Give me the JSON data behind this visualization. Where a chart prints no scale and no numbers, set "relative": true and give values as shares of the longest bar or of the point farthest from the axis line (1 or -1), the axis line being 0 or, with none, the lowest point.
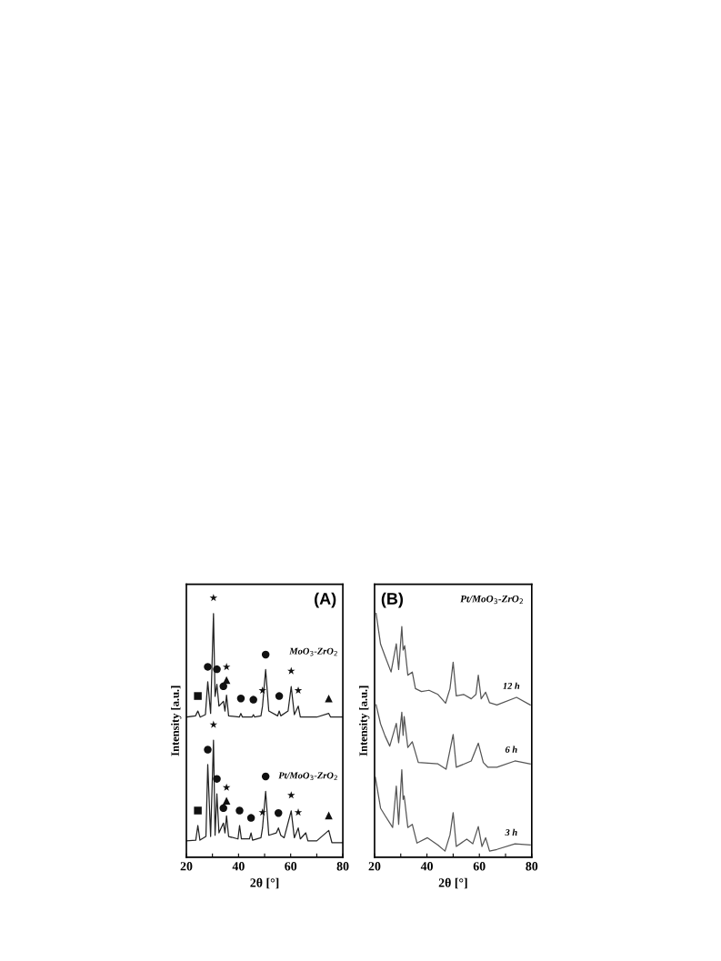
{
  "chart_data": [
    {
      "type": "line",
      "title": "(A)",
      "xlabel": "2θ [°]",
      "ylabel": "Intensity [a.u.]",
      "relative": true,
      "tick_labels": "x",
      "xlim": [
        20,
        80
      ],
      "xticks": [
        20,
        {
          "value": 30,
          "label": null
        },
        40,
        {
          "value": 50,
          "label": null
        },
        60,
        {
          "value": 70,
          "label": null
        },
        80
      ],
      "series": [
        {
          "name": "MoO$_{3}$-ZrO$_{2}$",
          "color": "#222222",
          "x": [
            20,
            23.5,
            24.4,
            25.3,
            27.3,
            28.2,
            29.3,
            30.4,
            31.0,
            31.7,
            32.5,
            34.2,
            34.8,
            35.4,
            36.2,
            40.3,
            40.9,
            41.5,
            45.2,
            45.7,
            46.2,
            48.6,
            49.2,
            50.4,
            51.6,
            55.0,
            55.6,
            56.2,
            59.0,
            60.2,
            61.4,
            62.9,
            63.7,
            70.0,
            74.6,
            75.3,
            79.8
          ],
          "values": [
            0.575,
            0.58,
            0.6,
            0.575,
            0.585,
            0.72,
            0.59,
            1.0,
            0.66,
            0.71,
            0.62,
            0.64,
            0.6,
            0.665,
            0.58,
            0.575,
            0.59,
            0.575,
            0.575,
            0.585,
            0.575,
            0.58,
            0.62,
            0.77,
            0.6,
            0.58,
            0.6,
            0.58,
            0.6,
            0.7,
            0.585,
            0.62,
            0.575,
            0.575,
            0.59,
            0.575,
            0.575
          ]
        },
        {
          "name": "Pt/MoO$_{3}$-ZrO$_{2}$",
          "color": "#222222",
          "x": [
            20,
            23.6,
            24.4,
            25.2,
            27.5,
            28.2,
            29.3,
            30.4,
            31.0,
            31.7,
            32.5,
            34.2,
            34.8,
            35.4,
            36.2,
            39.8,
            40.4,
            41.1,
            44.2,
            44.8,
            45.4,
            48.6,
            49.2,
            50.4,
            51.6,
            54.5,
            55.3,
            56.2,
            57.5,
            60.2,
            61.4,
            62.9,
            63.7,
            65.8,
            66.6,
            70.0,
            74.6,
            75.8,
            79.8
          ],
          "values": [
            0.067,
            0.07,
            0.13,
            0.07,
            0.085,
            0.38,
            0.085,
            0.48,
            0.09,
            0.26,
            0.1,
            0.14,
            0.1,
            0.17,
            0.085,
            0.075,
            0.13,
            0.075,
            0.075,
            0.1,
            0.07,
            0.08,
            0.12,
            0.27,
            0.09,
            0.1,
            0.12,
            0.09,
            0.08,
            0.19,
            0.08,
            0.12,
            0.075,
            0.1,
            0.067,
            0.067,
            0.11,
            0.06,
            0.06
          ]
        }
      ],
      "annotations": [
        {
          "text": "■",
          "x": 24.4,
          "y": 0.6
        },
        {
          "text": "●",
          "x": 28.2,
          "y": 0.72
        },
        {
          "text": "★",
          "x": 30.4,
          "y": 1.0
        },
        {
          "text": "●",
          "x": 31.7,
          "y": 0.71
        },
        {
          "text": "●",
          "x": 34.2,
          "y": 0.64
        },
        {
          "text": "▲",
          "x": 35.4,
          "y": 0.665
        },
        {
          "text": "★",
          "x": 35.4,
          "y": 0.665
        },
        {
          "text": "●",
          "x": 40.9,
          "y": 0.59
        },
        {
          "text": "●",
          "x": 45.7,
          "y": 0.585
        },
        {
          "text": "★",
          "x": 49.2,
          "y": 0.62
        },
        {
          "text": "●",
          "x": 50.4,
          "y": 0.77
        },
        {
          "text": "●",
          "x": 55.6,
          "y": 0.6
        },
        {
          "text": "★",
          "x": 60.2,
          "y": 0.7
        },
        {
          "text": "★",
          "x": 62.9,
          "y": 0.62
        },
        {
          "text": "▲",
          "x": 74.6,
          "y": 0.59
        },
        {
          "text": "■",
          "x": 24.4,
          "y": 0.13
        },
        {
          "text": "●",
          "x": 28.2,
          "y": 0.38
        },
        {
          "text": "★",
          "x": 30.4,
          "y": 0.48
        },
        {
          "text": "●",
          "x": 31.7,
          "y": 0.26
        },
        {
          "text": "●",
          "x": 34.2,
          "y": 0.14
        },
        {
          "text": "▲",
          "x": 35.4,
          "y": 0.17
        },
        {
          "text": "★",
          "x": 35.4,
          "y": 0.17
        },
        {
          "text": "●",
          "x": 40.4,
          "y": 0.13
        },
        {
          "text": "●",
          "x": 44.8,
          "y": 0.1
        },
        {
          "text": "★",
          "x": 49.2,
          "y": 0.12
        },
        {
          "text": "●",
          "x": 50.4,
          "y": 0.27
        },
        {
          "text": "●",
          "x": 55.3,
          "y": 0.12
        },
        {
          "text": "★",
          "x": 60.2,
          "y": 0.19
        },
        {
          "text": "★",
          "x": 62.9,
          "y": 0.12
        },
        {
          "text": "▲",
          "x": 74.6,
          "y": 0.11
        }
      ]
    },
    {
      "type": "line",
      "title": "(B)",
      "xlabel": "2θ [°]",
      "ylabel": "Intensity [a.u.]",
      "relative": true,
      "tick_labels": "x",
      "xlim": [
        20,
        80
      ],
      "xticks": [
        20,
        {
          "value": 30,
          "label": null
        },
        40,
        {
          "value": 50,
          "label": null
        },
        60,
        {
          "value": 70,
          "label": null
        },
        80
      ],
      "series": [
        {
          "name": "12 h",
          "color": "#555555",
          "x": [
            20.6,
            22.3,
            24.0,
            26.3,
            28.3,
            29.2,
            30.4,
            30.9,
            31.5,
            32.7,
            34.4,
            35.6,
            37.9,
            40.8,
            44.2,
            47.1,
            48.8,
            50.0,
            51.2,
            54.0,
            56.9,
            58.7,
            59.6,
            60.7,
            62.4,
            63.9,
            66.7,
            74.2,
            79.4
          ],
          "values": [
            1.0,
            0.874,
            0.825,
            0.76,
            0.876,
            0.77,
            0.947,
            0.85,
            0.868,
            0.747,
            0.76,
            0.692,
            0.68,
            0.685,
            0.668,
            0.632,
            0.692,
            0.8,
            0.662,
            0.668,
            0.65,
            0.668,
            0.747,
            0.65,
            0.677,
            0.634,
            0.625,
            0.656,
            0.625
          ]
        },
        {
          "name": "6 h",
          "color": "#555555",
          "x": [
            20.6,
            22.3,
            24.0,
            25.8,
            28.3,
            29.2,
            30.4,
            30.9,
            31.3,
            32.7,
            34.4,
            36.7,
            44.2,
            47.3,
            50.0,
            51.2,
            56.9,
            59.6,
            61.5,
            63.3,
            66.7,
            73.6,
            79.4
          ],
          "values": [
            0.625,
            0.547,
            0.498,
            0.456,
            0.549,
            0.47,
            0.595,
            0.5,
            0.577,
            0.45,
            0.474,
            0.389,
            0.383,
            0.361,
            0.504,
            0.369,
            0.395,
            0.468,
            0.389,
            0.369,
            0.369,
            0.395,
            0.383
          ]
        },
        {
          "name": "3 h",
          "color": "#555555",
          "x": [
            20.3,
            22.3,
            24.0,
            26.9,
            28.3,
            29.2,
            30.4,
            30.9,
            31.3,
            32.7,
            34.4,
            36.2,
            40.2,
            44.2,
            46.9,
            48.8,
            50.0,
            51.2,
            55.2,
            57.5,
            59.6,
            61.0,
            62.4,
            63.9,
            66.7,
            73.6,
            79.4
          ],
          "values": [
            0.328,
            0.201,
            0.171,
            0.122,
            0.292,
            0.135,
            0.359,
            0.237,
            0.252,
            0.122,
            0.135,
            0.058,
            0.08,
            0.05,
            0.025,
            0.092,
            0.183,
            0.044,
            0.074,
            0.055,
            0.126,
            0.044,
            0.08,
            0.025,
            0.032,
            0.055,
            0.05
          ]
        }
      ],
      "annotations": [
        "Pt/MoO$_{3}$-ZrO$_{2}$"
      ]
    }
  ]
}
